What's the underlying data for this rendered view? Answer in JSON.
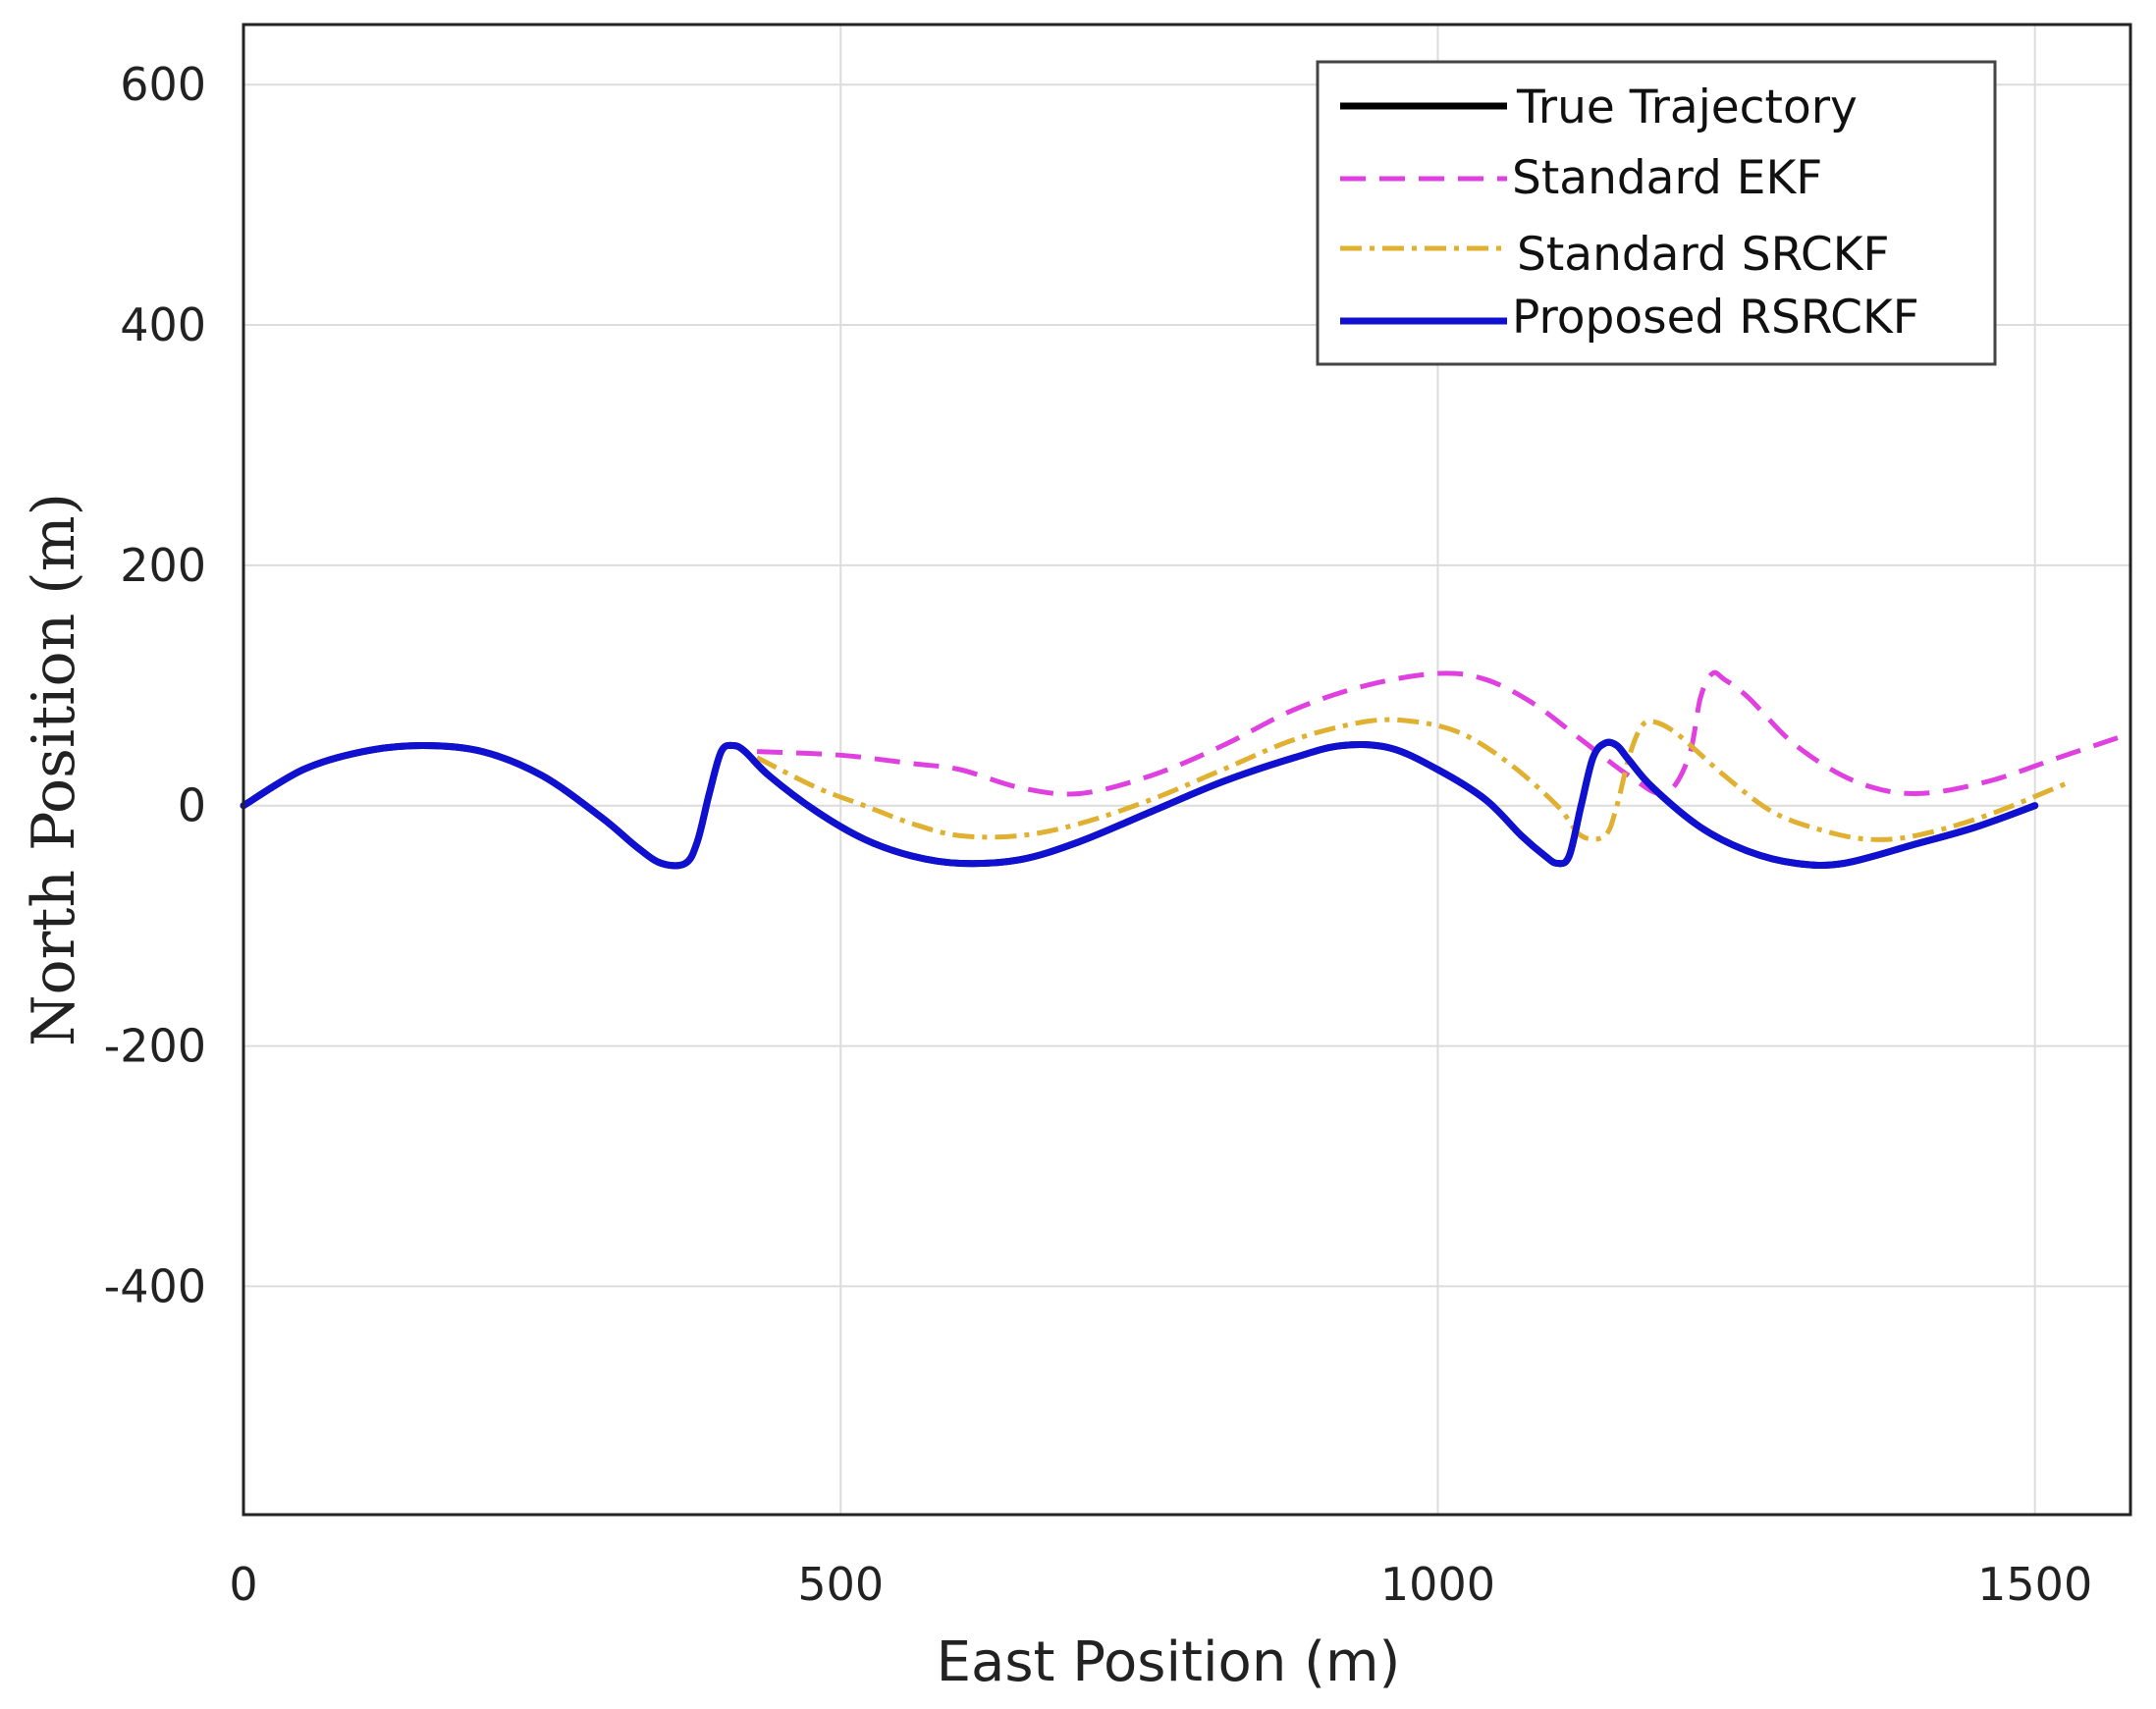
{
  "chart_data": {
    "type": "line",
    "title": "",
    "xlabel": "East Position (m)",
    "ylabel": "North Position (m)",
    "xlim": [
      0,
      1580
    ],
    "ylim": [
      -590,
      650
    ],
    "xticks": [
      0,
      500,
      1000,
      1500
    ],
    "yticks": [
      600,
      400,
      200,
      0,
      -200,
      -400
    ],
    "grid": true,
    "legend_position": "top-right",
    "series": [
      {
        "name": "True Trajectory",
        "color": "#000000",
        "style": "solid",
        "x": [
          0,
          50,
          100,
          150,
          200,
          250,
          300,
          330,
          350,
          370,
          380,
          390,
          400,
          410,
          420,
          440,
          480,
          520,
          560,
          600,
          650,
          700,
          760,
          820,
          880,
          920,
          960,
          1000,
          1040,
          1070,
          1090,
          1100,
          1110,
          1120,
          1130,
          1140,
          1150,
          1160,
          1180,
          1220,
          1260,
          1300,
          1340,
          1400,
          1450,
          1500
        ],
        "y": [
          0,
          30,
          45,
          50,
          45,
          25,
          -10,
          -35,
          -48,
          -48,
          -30,
          10,
          45,
          50,
          45,
          25,
          -5,
          -28,
          -42,
          -48,
          -45,
          -30,
          -5,
          20,
          40,
          50,
          48,
          30,
          5,
          -25,
          -42,
          -48,
          -42,
          0,
          40,
          52,
          50,
          38,
          15,
          -18,
          -38,
          -48,
          -48,
          -32,
          -18,
          0
        ]
      },
      {
        "name": "Standard EKF",
        "color": "#e040e0",
        "style": "dashed",
        "x": [
          430,
          500,
          560,
          600,
          650,
          700,
          760,
          820,
          880,
          940,
          1000,
          1040,
          1080,
          1120,
          1160,
          1190,
          1210,
          1220,
          1230,
          1240,
          1260,
          1300,
          1350,
          1400,
          1460,
          1520,
          1580
        ],
        "y": [
          45,
          42,
          35,
          30,
          15,
          10,
          25,
          50,
          80,
          100,
          110,
          105,
          85,
          55,
          25,
          10,
          40,
          90,
          110,
          105,
          90,
          50,
          20,
          10,
          20,
          40,
          60
        ]
      },
      {
        "name": "Standard SRCKF",
        "color": "#e0b030",
        "style": "dashdot",
        "x": [
          430,
          480,
          520,
          560,
          600,
          650,
          700,
          760,
          820,
          880,
          940,
          980,
          1020,
          1060,
          1100,
          1120,
          1140,
          1150,
          1160,
          1170,
          1180,
          1200,
          1240,
          1280,
          1320,
          1360,
          1400,
          1460,
          1530
        ],
        "y": [
          40,
          15,
          0,
          -15,
          -25,
          -25,
          -15,
          5,
          30,
          55,
          70,
          70,
          60,
          35,
          0,
          -25,
          -25,
          0,
          40,
          65,
          70,
          60,
          25,
          -5,
          -20,
          -28,
          -25,
          -8,
          20
        ]
      },
      {
        "name": "Proposed RSRCKF",
        "color": "#1010d0",
        "style": "solid",
        "x": [
          0,
          50,
          100,
          150,
          200,
          250,
          300,
          330,
          350,
          370,
          380,
          390,
          400,
          410,
          420,
          440,
          480,
          520,
          560,
          600,
          650,
          700,
          760,
          820,
          880,
          920,
          960,
          1000,
          1040,
          1070,
          1090,
          1100,
          1110,
          1120,
          1130,
          1140,
          1150,
          1160,
          1180,
          1220,
          1260,
          1300,
          1340,
          1400,
          1450,
          1500
        ],
        "y": [
          0,
          30,
          45,
          50,
          45,
          25,
          -10,
          -35,
          -48,
          -48,
          -30,
          10,
          45,
          50,
          45,
          25,
          -5,
          -28,
          -42,
          -48,
          -45,
          -30,
          -5,
          20,
          40,
          50,
          48,
          30,
          5,
          -25,
          -42,
          -48,
          -42,
          0,
          40,
          52,
          50,
          38,
          15,
          -18,
          -38,
          -48,
          -48,
          -32,
          -18,
          0
        ]
      }
    ]
  }
}
